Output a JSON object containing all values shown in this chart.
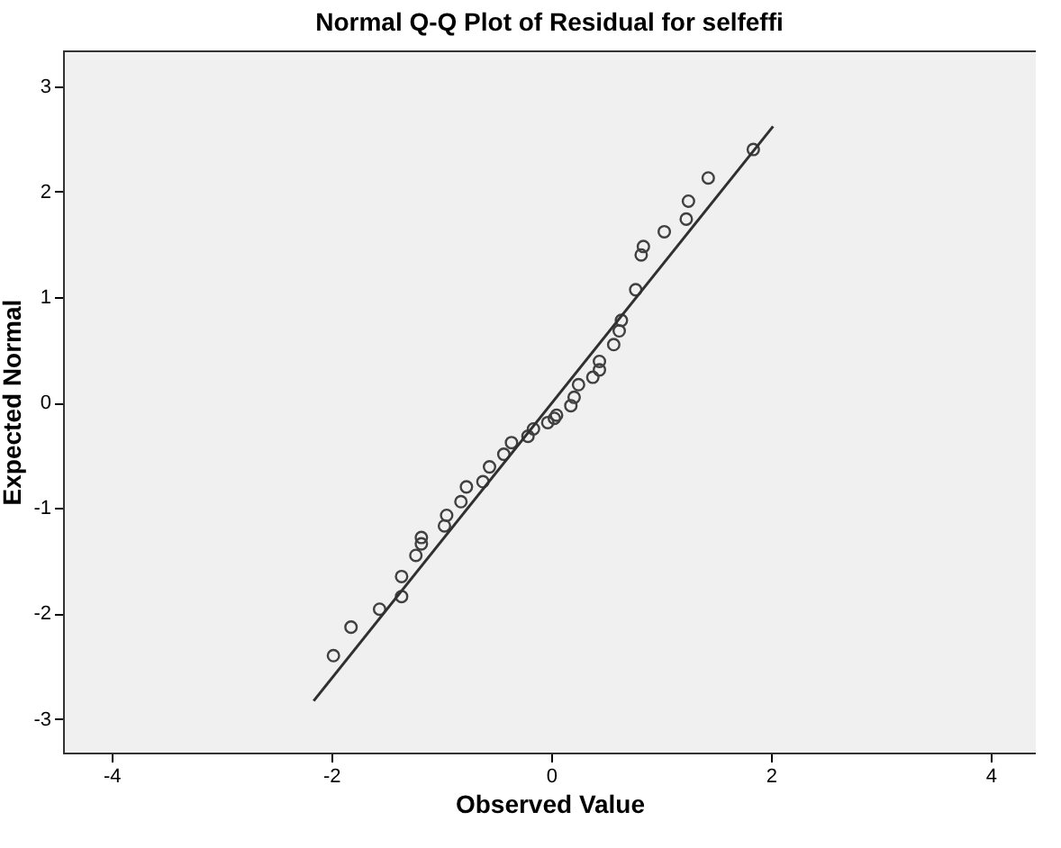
{
  "chart_data": {
    "type": "scatter",
    "title": "Normal Q-Q Plot of Residual for selfeffi",
    "xlabel": "Observed Value",
    "ylabel": "Expected Normal",
    "xlim": [
      -4.44,
      4.41
    ],
    "ylim": [
      -3.32,
      3.34
    ],
    "xticks": [
      -4,
      -2,
      0,
      2,
      4
    ],
    "yticks": [
      -3,
      -2,
      -1,
      0,
      1,
      2,
      3
    ],
    "grid": false,
    "series": [
      {
        "marker": "circle",
        "color": "#404040",
        "x": [
          -1.98,
          -1.82,
          -1.56,
          -1.36,
          -1.36,
          -1.23,
          -1.18,
          -1.18,
          -0.97,
          -0.95,
          -0.82,
          -0.77,
          -0.62,
          -0.56,
          -0.43,
          -0.36,
          -0.21,
          -0.16,
          -0.03,
          0.05,
          0.03,
          0.18,
          0.21,
          0.25,
          0.38,
          0.44,
          0.44,
          0.57,
          0.62,
          0.64,
          0.77,
          0.82,
          0.84,
          1.03,
          1.23,
          1.25,
          1.43,
          1.84
        ],
        "values": [
          -2.4,
          -2.13,
          -1.96,
          -1.84,
          -1.65,
          -1.45,
          -1.28,
          -1.34,
          -1.17,
          -1.07,
          -0.94,
          -0.8,
          -0.75,
          -0.61,
          -0.49,
          -0.38,
          -0.32,
          -0.25,
          -0.19,
          -0.12,
          -0.15,
          -0.03,
          0.05,
          0.17,
          0.24,
          0.31,
          0.39,
          0.55,
          0.68,
          0.78,
          1.07,
          1.4,
          1.48,
          1.62,
          1.74,
          1.91,
          2.13,
          2.4
        ]
      },
      {
        "type": "line",
        "marker": "none",
        "color": "#303030",
        "x": [
          -2.16,
          2.02
        ],
        "values": [
          -2.83,
          2.62
        ]
      }
    ]
  }
}
